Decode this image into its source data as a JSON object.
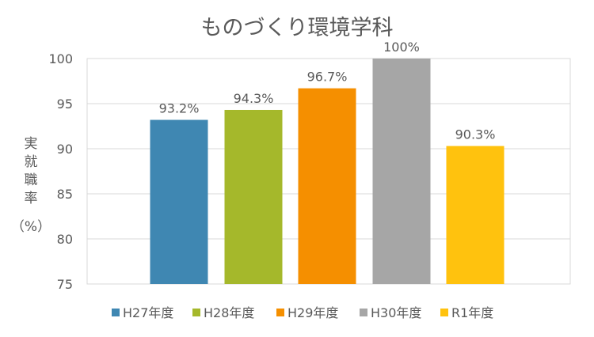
{
  "chart_data": {
    "type": "bar",
    "title": "ものづくり環境学科",
    "ylabel": "実就職率（%）",
    "ylim": [
      75,
      100
    ],
    "yticks": [
      75,
      80,
      85,
      90,
      95,
      100
    ],
    "grid": true,
    "legend_position": "bottom",
    "categories": [
      "H27年度",
      "H28年度",
      "H29年度",
      "H30年度",
      "R1年度"
    ],
    "values": [
      93.2,
      94.3,
      96.7,
      100,
      90.3
    ],
    "data_labels": [
      "93.2%",
      "94.3%",
      "96.7%",
      "100%",
      "90.3%"
    ],
    "colors": [
      "#3f87b2",
      "#a5b82b",
      "#f58f00",
      "#a6a6a6",
      "#ffc20e"
    ]
  }
}
